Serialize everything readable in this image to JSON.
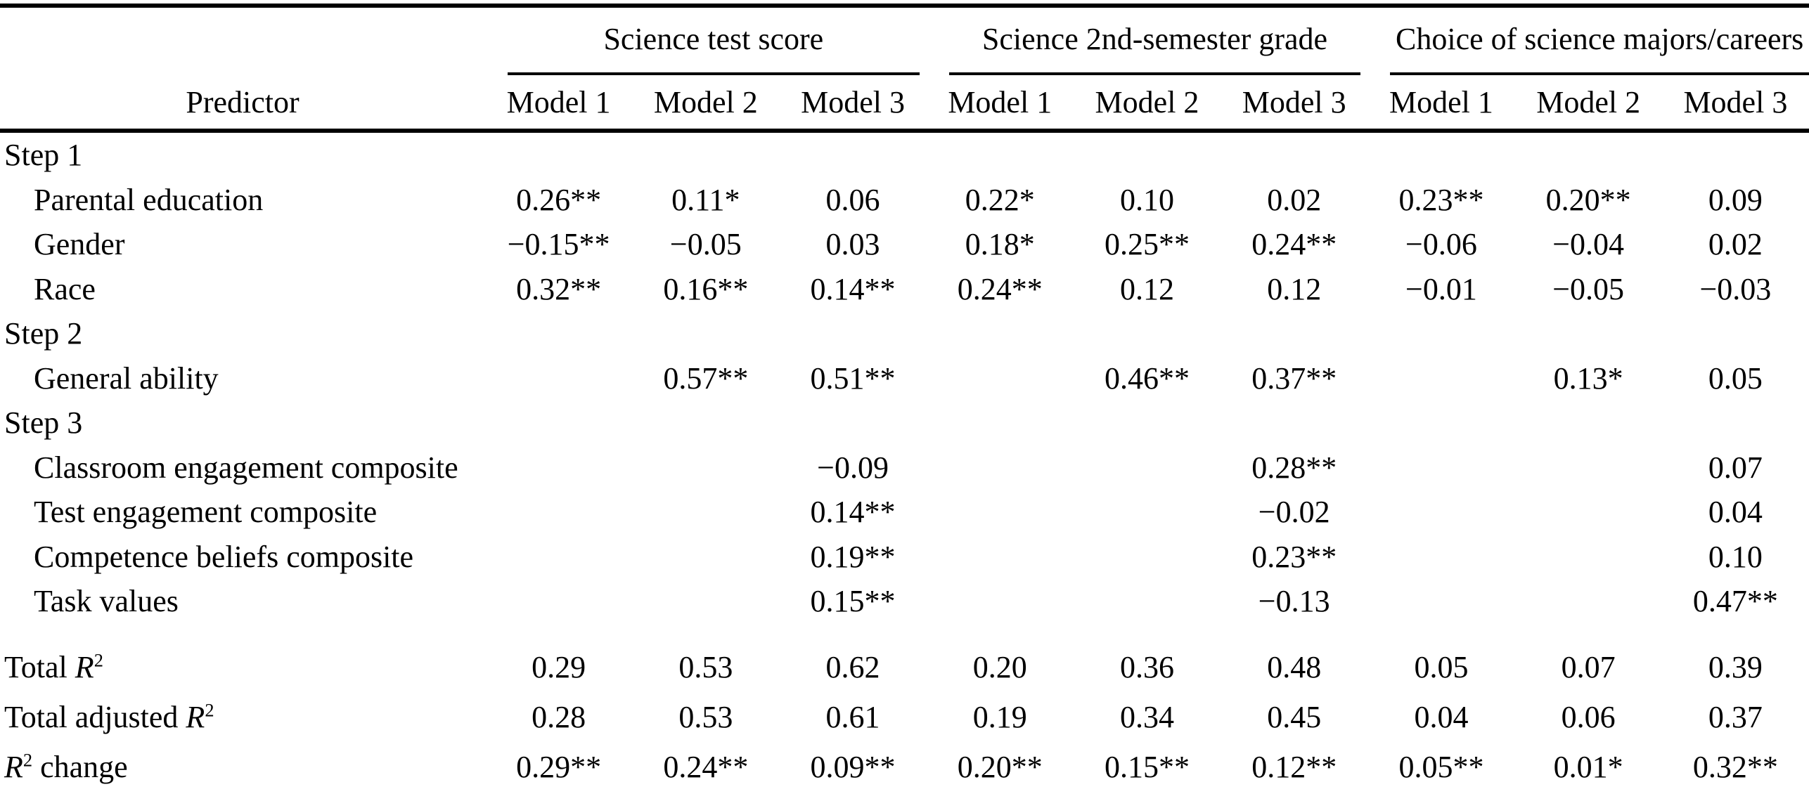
{
  "table": {
    "predictor_header": "Predictor",
    "column_groups": [
      {
        "label": "Science test score",
        "models": [
          "Model 1",
          "Model 2",
          "Model 3"
        ]
      },
      {
        "label": "Science 2nd-semester grade",
        "models": [
          "Model 1",
          "Model 2",
          "Model 3"
        ]
      },
      {
        "label": "Choice of science majors/careers",
        "models": [
          "Model 1",
          "Model 2",
          "Model 3"
        ]
      }
    ],
    "rows": [
      {
        "type": "section",
        "label": "Step 1",
        "values": [
          "",
          "",
          "",
          "",
          "",
          "",
          "",
          "",
          ""
        ]
      },
      {
        "type": "predictor",
        "label": "Parental education",
        "values": [
          "0.26**",
          "0.11*",
          "0.06",
          "0.22*",
          "0.10",
          "0.02",
          "0.23**",
          "0.20**",
          "0.09"
        ]
      },
      {
        "type": "predictor",
        "label": "Gender",
        "values": [
          "−0.15**",
          "−0.05",
          "0.03",
          "0.18*",
          "0.25**",
          "0.24**",
          "−0.06",
          "−0.04",
          "0.02"
        ]
      },
      {
        "type": "predictor",
        "label": "Race",
        "values": [
          "0.32**",
          "0.16**",
          "0.14**",
          "0.24**",
          "0.12",
          "0.12",
          "−0.01",
          "−0.05",
          "−0.03"
        ]
      },
      {
        "type": "section",
        "label": "Step 2",
        "values": [
          "",
          "",
          "",
          "",
          "",
          "",
          "",
          "",
          ""
        ]
      },
      {
        "type": "predictor",
        "label": "General ability",
        "values": [
          "",
          "0.57**",
          "0.51**",
          "",
          "0.46**",
          "0.37**",
          "",
          "0.13*",
          "0.05"
        ]
      },
      {
        "type": "section",
        "label": "Step 3",
        "values": [
          "",
          "",
          "",
          "",
          "",
          "",
          "",
          "",
          ""
        ]
      },
      {
        "type": "predictor",
        "label": "Classroom engagement composite",
        "values": [
          "",
          "",
          "−0.09",
          "",
          "",
          "0.28**",
          "",
          "",
          "0.07"
        ]
      },
      {
        "type": "predictor",
        "label": "Test engagement composite",
        "values": [
          "",
          "",
          "0.14**",
          "",
          "",
          "−0.02",
          "",
          "",
          "0.04"
        ]
      },
      {
        "type": "predictor",
        "label": "Competence beliefs composite",
        "values": [
          "",
          "",
          "0.19**",
          "",
          "",
          "0.23**",
          "",
          "",
          "0.10"
        ]
      },
      {
        "type": "predictor",
        "label": "Task values",
        "values": [
          "",
          "",
          "0.15**",
          "",
          "",
          "−0.13",
          "",
          "",
          "0.47**"
        ]
      },
      {
        "type": "summary",
        "spacer_before": true,
        "label": "Total R²",
        "values": [
          "0.29",
          "0.53",
          "0.62",
          "0.20",
          "0.36",
          "0.48",
          "0.05",
          "0.07",
          "0.39"
        ]
      },
      {
        "type": "summary",
        "label": "Total adjusted R²",
        "values": [
          "0.28",
          "0.53",
          "0.61",
          "0.19",
          "0.34",
          "0.45",
          "0.04",
          "0.06",
          "0.37"
        ]
      },
      {
        "type": "summary",
        "label": "R² change",
        "values": [
          "0.29**",
          "0.24**",
          "0.09**",
          "0.20**",
          "0.15**",
          "0.12**",
          "0.05**",
          "0.01*",
          "0.32**"
        ]
      }
    ]
  },
  "colors": {
    "text": "#000000",
    "background": "#ffffff",
    "rule": "#000000"
  }
}
